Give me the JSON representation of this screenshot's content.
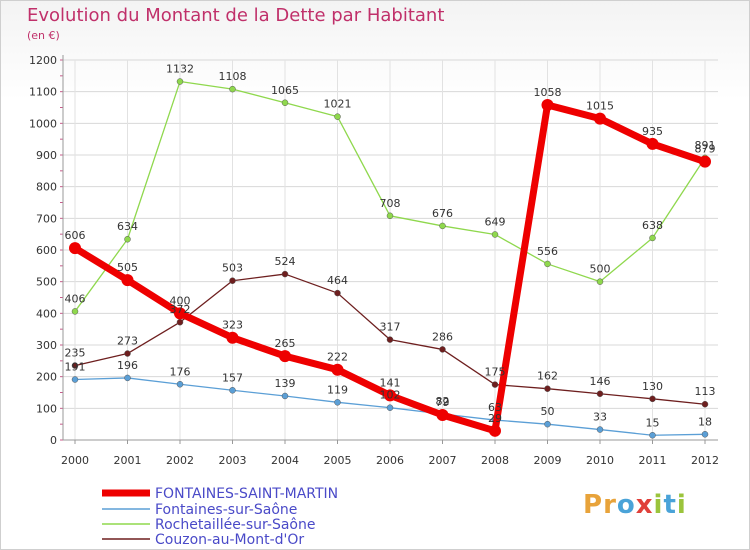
{
  "header": {
    "title": "Evolution du Montant de la Dette par Habitant",
    "unit": "(en €)"
  },
  "logo": {
    "letters": [
      "P",
      "r",
      "o",
      "x",
      "i",
      "t",
      "i"
    ],
    "colors": [
      "#e8a33a",
      "#e8a33a",
      "#4aa3d8",
      "#e0403a",
      "#9bc43c",
      "#4aa3d8",
      "#9bc43c"
    ]
  },
  "chart_data": {
    "type": "line",
    "title": "Evolution du Montant de la Dette par Habitant",
    "ylabel": "(en €)",
    "xlabel": "",
    "x": [
      "2000",
      "2001",
      "2002",
      "2003",
      "2004",
      "2005",
      "2006",
      "2007",
      "2008",
      "2009",
      "2010",
      "2011",
      "2012"
    ],
    "y_ticks": [
      0,
      100,
      200,
      300,
      400,
      500,
      600,
      700,
      800,
      900,
      1000,
      1100,
      1200
    ],
    "ylim": [
      0,
      1200
    ],
    "grid": true,
    "legend_position": "bottom-left",
    "series": [
      {
        "name": "FONTAINES-SAINT-MARTIN",
        "color": "#ee0000",
        "emphasis": true,
        "values": [
          606,
          505,
          400,
          323,
          265,
          222,
          141,
          79,
          29,
          1058,
          1015,
          935,
          879
        ],
        "labels": [
          "606",
          "505",
          "400",
          "323",
          "265",
          "222",
          "141",
          "79",
          "29",
          "1058",
          "1015",
          "935",
          "879"
        ]
      },
      {
        "name": "Fontaines-sur-Saône",
        "color": "#5b9fd6",
        "values": [
          191,
          196,
          176,
          157,
          139,
          119,
          102,
          82,
          63,
          50,
          33,
          15,
          18
        ],
        "labels": [
          "191",
          "196",
          "176",
          "157",
          "139",
          "119",
          "102",
          "82",
          "63",
          "50",
          "33",
          "15",
          "18"
        ]
      },
      {
        "name": "Rochetaillée-sur-Saône",
        "color": "#8fd84d",
        "values": [
          406,
          634,
          1132,
          1108,
          1065,
          1021,
          708,
          676,
          649,
          556,
          500,
          638,
          891
        ],
        "labels": [
          "406",
          "634",
          "1132",
          "1108",
          "1065",
          "1021",
          "708",
          "676",
          "649",
          "556",
          "500",
          "638",
          "891"
        ]
      },
      {
        "name": "Couzon-au-Mont-d'Or",
        "color": "#6e1f1f",
        "values": [
          235,
          273,
          372,
          503,
          524,
          464,
          317,
          286,
          175,
          162,
          146,
          130,
          113
        ],
        "labels": [
          "235",
          "273",
          "372",
          "503",
          "524",
          "464",
          "317",
          "286",
          "175",
          "162",
          "146",
          "130",
          "113"
        ]
      }
    ]
  }
}
